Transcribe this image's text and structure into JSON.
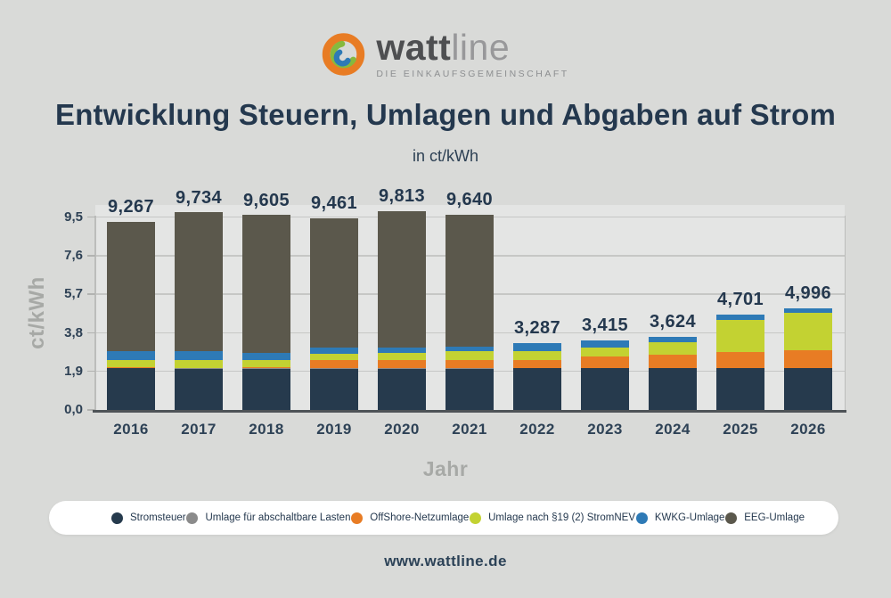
{
  "logo": {
    "brand_bold": "watt",
    "brand_light": "line",
    "tagline": "DIE EINKAUFSGEMEINSCHAFT",
    "icon_colors": {
      "ring": "#e87c24",
      "swirl_green": "#86b93e",
      "swirl_blue": "#2e7ab6"
    }
  },
  "header": {
    "title": "Entwicklung Steuern, Umlagen und Abgaben auf Strom",
    "subtitle": "in ct/kWh"
  },
  "footer": {
    "url": "www.wattline.de"
  },
  "colors": {
    "background": "#d9dad8",
    "text_dark": "#24384e",
    "text_muted": "#a7a9a6",
    "gridline": "#c6c7c5",
    "axis_line": "#4e5357"
  },
  "chart_data": {
    "type": "bar",
    "stacked": true,
    "title": "Entwicklung Steuern, Umlagen und Abgaben auf Strom",
    "subtitle": "in ct/kWh",
    "xlabel": "Jahr",
    "ylabel": "ct/kWh",
    "grid": "horizontal",
    "legend_position": "bottom",
    "categories": [
      "2016",
      "2017",
      "2018",
      "2019",
      "2020",
      "2021",
      "2022",
      "2023",
      "2024",
      "2025",
      "2026"
    ],
    "series": [
      {
        "name": "Stromsteuer",
        "color": "#263a4d",
        "values": [
          2.05,
          2.05,
          2.05,
          2.05,
          2.05,
          2.05,
          2.05,
          2.05,
          2.05,
          2.05,
          2.05
        ]
      },
      {
        "name": "Umlage für abschaltbare Lasten",
        "color": "#8b8b8b",
        "values": [
          0,
          0.006,
          0.011,
          0.005,
          0.007,
          0.009,
          0.003,
          0,
          0,
          0,
          0
        ]
      },
      {
        "name": "OffShore-Netzumlage",
        "color": "#e87c24",
        "values": [
          0.04,
          -0.028,
          0.037,
          0.416,
          0.416,
          0.395,
          0.419,
          0.591,
          0.656,
          0.816,
          0.911
        ]
      },
      {
        "name": "Umlage nach §19 (2) StromNEV",
        "color": "#c3d232",
        "values": [
          0.378,
          0.388,
          0.37,
          0.305,
          0.358,
          0.432,
          0.437,
          0.417,
          0.643,
          1.558,
          1.836
        ]
      },
      {
        "name": "KWKG-Umlage",
        "color": "#2e7ab6",
        "values": [
          0.445,
          0.438,
          0.345,
          0.28,
          0.226,
          0.254,
          0.378,
          0.357,
          0.275,
          0.277,
          0.199
        ]
      },
      {
        "name": "EEG-Umlage",
        "color": "#5b584c",
        "values": [
          6.354,
          6.88,
          6.792,
          6.405,
          6.756,
          6.5,
          0,
          0,
          0,
          0,
          0
        ]
      }
    ],
    "totals": [
      9.267,
      9.734,
      9.605,
      9.461,
      9.813,
      9.64,
      3.287,
      3.415,
      3.624,
      4.701,
      4.996
    ],
    "total_labels": [
      "9,267",
      "9,734",
      "9,605",
      "9,461",
      "9,813",
      "9,640",
      "3,287",
      "3,415",
      "3,624",
      "4,701",
      "4,996"
    ],
    "yticks": {
      "labels": [
        "0,0",
        "1,9",
        "3,8",
        "5,7",
        "7,6",
        "9,5"
      ],
      "values": [
        0,
        1.9,
        3.8,
        5.7,
        7.6,
        9.5
      ]
    },
    "ylim": [
      0,
      10.1
    ]
  }
}
